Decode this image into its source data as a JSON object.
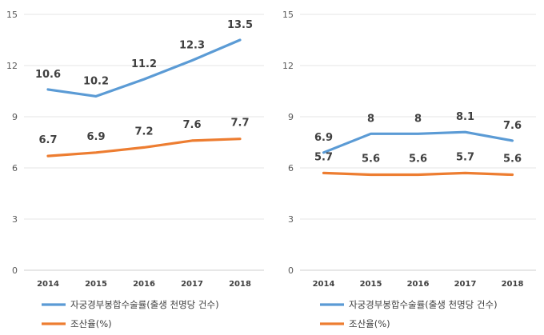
{
  "chart_data": [
    {
      "type": "line",
      "categories": [
        "2014",
        "2015",
        "2016",
        "2017",
        "2018"
      ],
      "ylim": [
        0,
        15
      ],
      "yticks": [
        0,
        3,
        6,
        9,
        12,
        15
      ],
      "grid": true,
      "legend_position": "bottom",
      "series": [
        {
          "name": "자궁경부봉합수술률(출생 천명당 건수)",
          "color": "#5b9bd5",
          "values": [
            10.6,
            10.2,
            11.2,
            12.3,
            13.5
          ],
          "labels": [
            "10.6",
            "10.2",
            "11.2",
            "12.3",
            "13.5"
          ]
        },
        {
          "name": "조산율(%)",
          "color": "#ed7d31",
          "values": [
            6.7,
            6.9,
            7.2,
            7.6,
            7.7
          ],
          "labels": [
            "6.7",
            "6.9",
            "7.2",
            "7.6",
            "7.7"
          ]
        }
      ]
    },
    {
      "type": "line",
      "categories": [
        "2014",
        "2015",
        "2016",
        "2017",
        "2018"
      ],
      "ylim": [
        0,
        15
      ],
      "yticks": [
        0,
        3,
        6,
        9,
        12,
        15
      ],
      "grid": true,
      "legend_position": "bottom",
      "series": [
        {
          "name": "자궁경부봉합수술률(출생 천명당 건수)",
          "color": "#5b9bd5",
          "values": [
            6.9,
            8,
            8,
            8.1,
            7.6
          ],
          "labels": [
            "6.9",
            "8",
            "8",
            "8.1",
            "7.6"
          ]
        },
        {
          "name": "조산율(%)",
          "color": "#ed7d31",
          "values": [
            5.7,
            5.6,
            5.6,
            5.7,
            5.6
          ],
          "labels": [
            "5.7",
            "5.6",
            "5.6",
            "5.7",
            "5.6"
          ]
        }
      ]
    }
  ]
}
